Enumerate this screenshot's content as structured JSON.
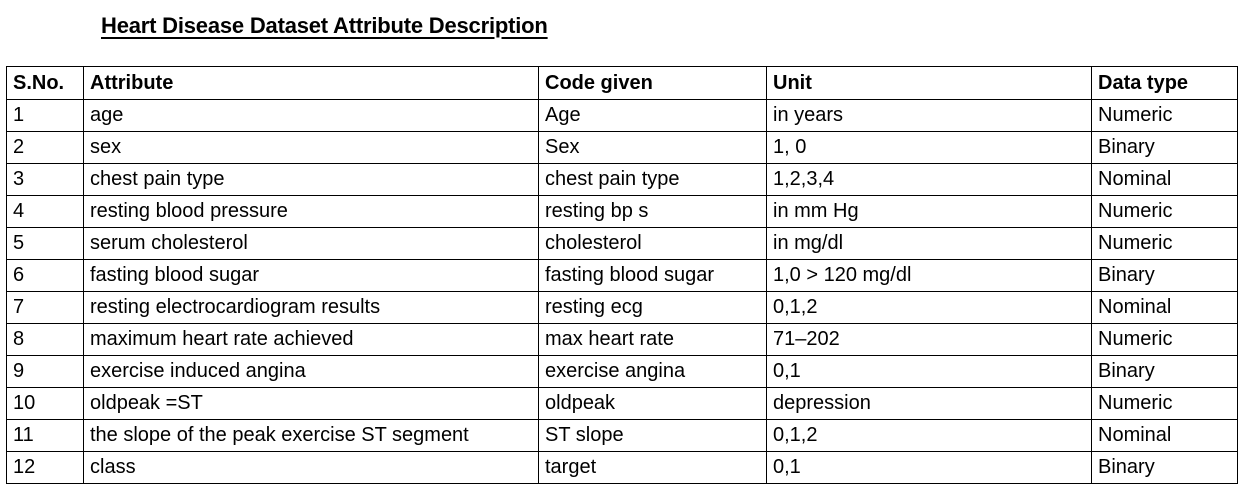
{
  "document": {
    "title": "Heart Disease Dataset Attribute Description"
  },
  "table": {
    "headers": [
      "S.No.",
      "Attribute",
      "Code given",
      "Unit",
      "Data type"
    ],
    "rows": [
      [
        "1",
        "age",
        "Age",
        "in years",
        "Numeric"
      ],
      [
        "2",
        "sex",
        "Sex",
        "1, 0",
        "Binary"
      ],
      [
        "3",
        "chest pain type",
        "chest pain type",
        "1,2,3,4",
        "Nominal"
      ],
      [
        "4",
        "resting blood pressure",
        "resting bp s",
        "in mm Hg",
        "Numeric"
      ],
      [
        "5",
        "serum cholesterol",
        "cholesterol",
        "in mg/dl",
        "Numeric"
      ],
      [
        "6",
        "fasting blood sugar",
        "fasting blood sugar",
        "1,0 > 120 mg/dl",
        "Binary"
      ],
      [
        "7",
        "resting electrocardiogram results",
        "resting ecg",
        "0,1,2",
        "Nominal"
      ],
      [
        "8",
        "maximum heart rate achieved",
        "max heart rate",
        "71–202",
        "Numeric"
      ],
      [
        "9",
        "exercise induced angina",
        "exercise angina",
        "0,1",
        "Binary"
      ],
      [
        "10",
        "oldpeak =ST",
        "oldpeak",
        "depression",
        "Numeric"
      ],
      [
        "11",
        "the slope of the peak exercise ST segment",
        "ST slope",
        "0,1,2",
        "Nominal"
      ],
      [
        "12",
        "class",
        "target",
        "0,1",
        "Binary"
      ]
    ]
  }
}
